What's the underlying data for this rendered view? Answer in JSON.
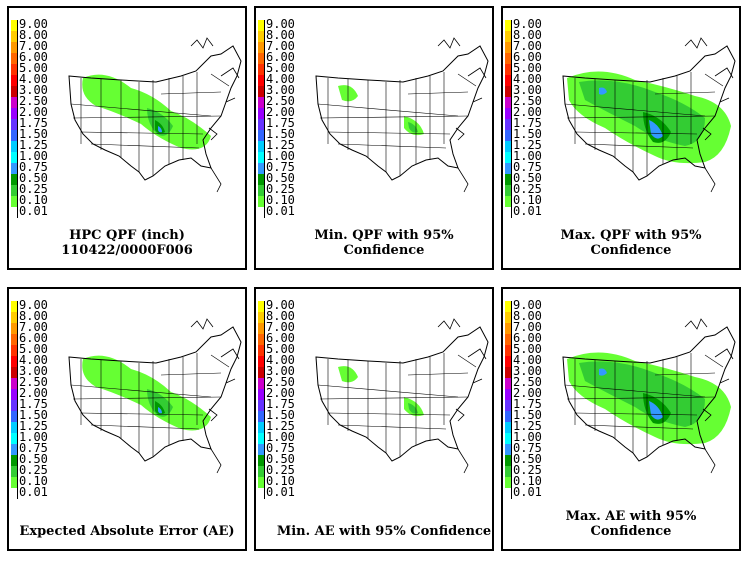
{
  "legend": {
    "levels": [
      {
        "label": "9.00",
        "color": "#ffff00"
      },
      {
        "label": "8.00",
        "color": "#ffcc00"
      },
      {
        "label": "7.00",
        "color": "#ff9900"
      },
      {
        "label": "6.00",
        "color": "#ff6600"
      },
      {
        "label": "5.00",
        "color": "#ff3300"
      },
      {
        "label": "4.00",
        "color": "#ff0000"
      },
      {
        "label": "3.00",
        "color": "#cc0000"
      },
      {
        "label": "2.50",
        "color": "#cc00cc"
      },
      {
        "label": "2.00",
        "color": "#9900ff"
      },
      {
        "label": "1.75",
        "color": "#6633ff"
      },
      {
        "label": "1.50",
        "color": "#3366ff"
      },
      {
        "label": "1.25",
        "color": "#00ccff"
      },
      {
        "label": "1.00",
        "color": "#00ffff"
      },
      {
        "label": "0.75",
        "color": "#3399ff"
      },
      {
        "label": "0.50",
        "color": "#009900"
      },
      {
        "label": "0.25",
        "color": "#33cc33"
      },
      {
        "label": "0.10",
        "color": "#66ff33"
      },
      {
        "label": "0.01",
        "color": "#ffffff"
      }
    ]
  },
  "panels": [
    {
      "caption": "HPC QPF (inch) 110422/0000F006",
      "intensity": "base"
    },
    {
      "caption": "Min. QPF with 95% Confidence",
      "intensity": "min"
    },
    {
      "caption": "Max. QPF with 95% Confidence",
      "intensity": "max"
    },
    {
      "caption": "Expected Absolute Error (AE)",
      "intensity": "base"
    },
    {
      "caption": "Min. AE with 95% Confidence",
      "intensity": "min"
    },
    {
      "caption": "Max. AE with 95% Confidence",
      "intensity": "max"
    }
  ],
  "map_colors": {
    "light": "#66ff33",
    "mid": "#33cc33",
    "dark": "#009900",
    "blue": "#3399ff",
    "outline": "#000000"
  }
}
